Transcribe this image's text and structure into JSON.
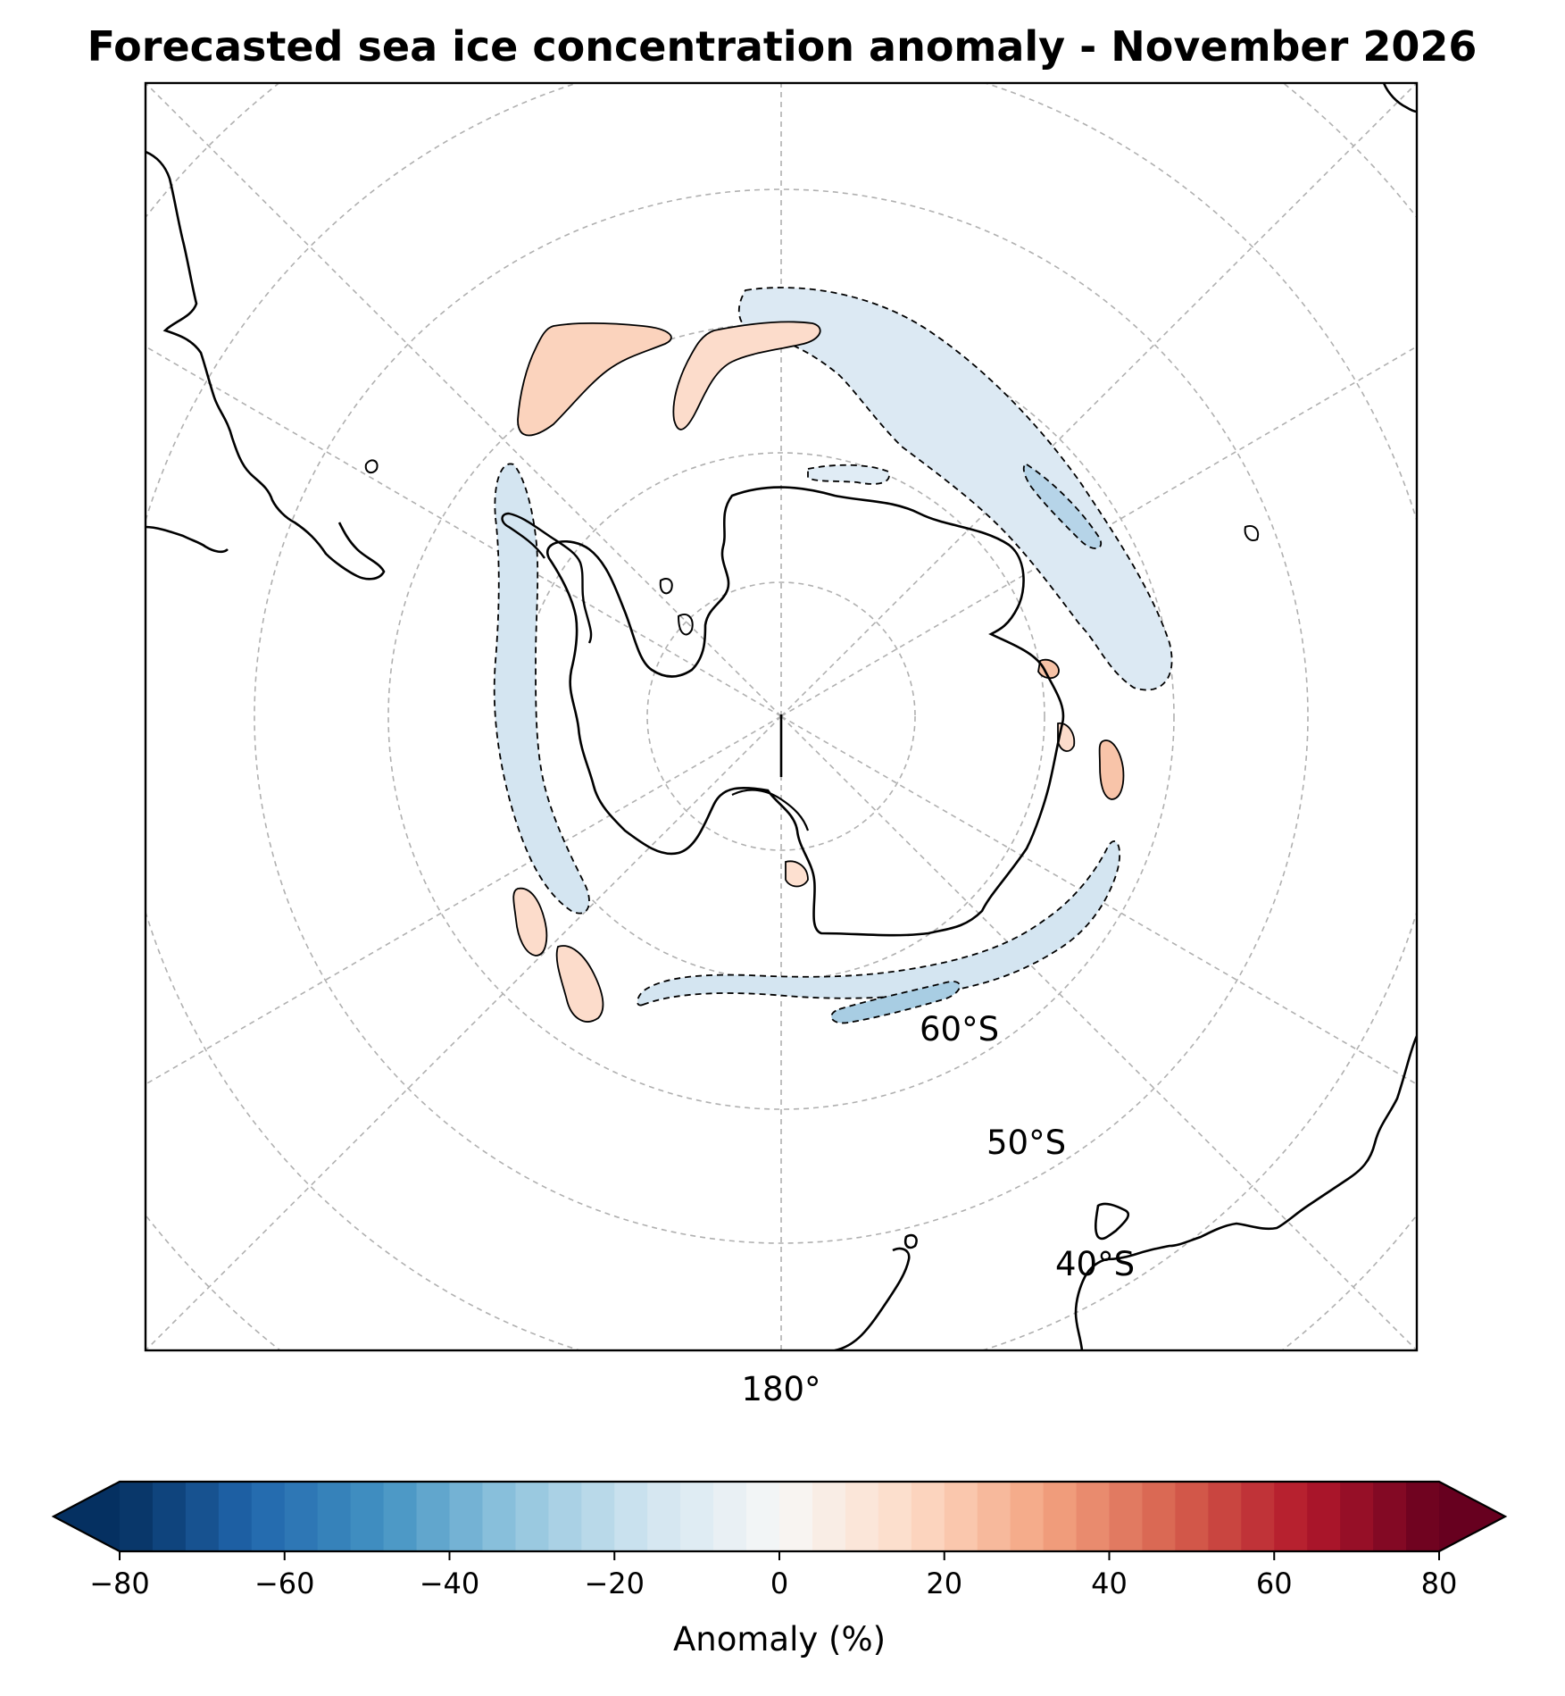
{
  "title": "Forecasted sea ice concentration anomaly - November 2026",
  "map": {
    "projection": "south-polar-stereographic",
    "central_meridian_label": "180°",
    "latitude_labels": [
      "60°S",
      "50°S",
      "40°S"
    ],
    "gridlines": "dashed-gray",
    "land": "outline-only",
    "positive_contours": "solid",
    "negative_contours": "dashed"
  },
  "colorbar": {
    "label": "Anomaly (%)",
    "colormap": "RdBu_r",
    "min": -80,
    "max": 80,
    "step": 4,
    "extend": "both",
    "ticks": [
      "−80",
      "−60",
      "−40",
      "−20",
      "0",
      "20",
      "40",
      "60",
      "80"
    ]
  },
  "colors": {
    "strong_negative": "#053061",
    "mid_negative": "#4393c3",
    "weak_negative": "#d1e5f0",
    "neutral": "#f7f7f7",
    "weak_positive": "#fddbc7",
    "mid_positive": "#d6604d",
    "strong_positive": "#67001f"
  }
}
